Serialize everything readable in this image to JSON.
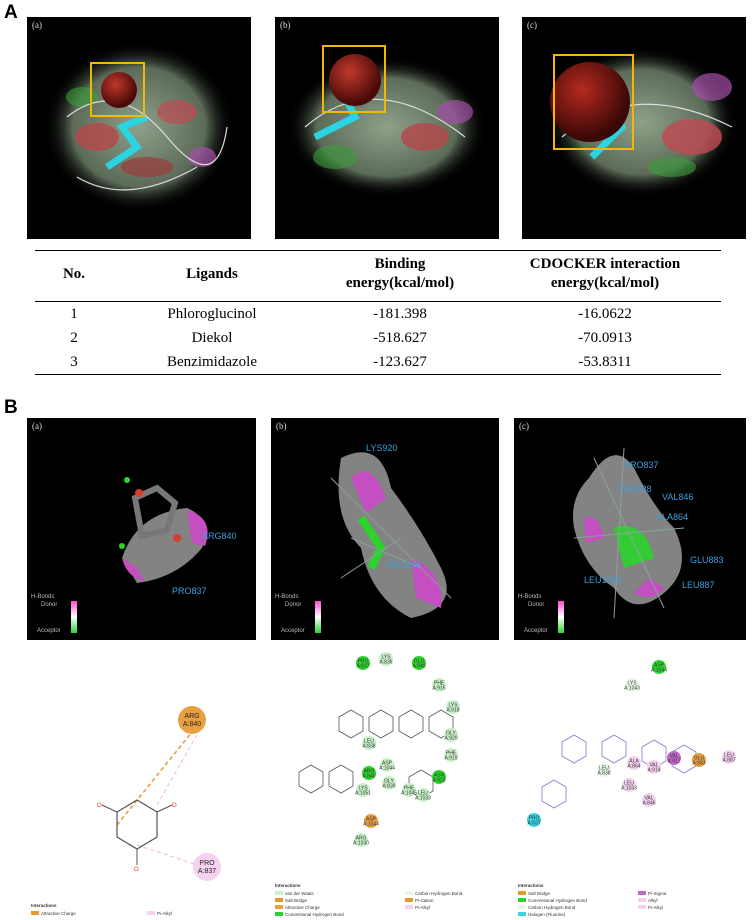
{
  "sectionA": {
    "label": "A",
    "panels": [
      {
        "tag": "(a)"
      },
      {
        "tag": "(b)"
      },
      {
        "tag": "(c)"
      }
    ]
  },
  "table": {
    "headers": {
      "no": "No.",
      "ligands": "Ligands",
      "binding_line1": "Binding",
      "binding_line2": "energy(kcal/mol)",
      "cdocker_line1": "CDOCKER interaction",
      "cdocker_line2": "energy(kcal/mol)"
    },
    "rows": [
      {
        "no": "1",
        "ligand": "Phloroglucinol",
        "binding": "-181.398",
        "cdocker": "-16.0622"
      },
      {
        "no": "2",
        "ligand": "Diekol",
        "binding": "-518.627",
        "cdocker": "-70.0913"
      },
      {
        "no": "3",
        "ligand": "Benzimidazole",
        "binding": "-123.627",
        "cdocker": "-53.8311"
      }
    ]
  },
  "sectionB": {
    "label": "B",
    "hbonds": {
      "title": "H-Bonds",
      "donor": "Donor",
      "acceptor": "Acceptor"
    },
    "panels": [
      {
        "tag": "(a)",
        "residues": [
          "ARG840",
          "PRO837"
        ]
      },
      {
        "tag": "(b)",
        "residues": [
          "LYS920",
          "ARG840"
        ]
      },
      {
        "tag": "(c)",
        "residues": [
          "PRO837",
          "LEU838",
          "VAL846",
          "ALA864",
          "GLU883",
          "LEU887",
          "LEU1002"
        ]
      }
    ],
    "diagram_a": {
      "nodes": [
        {
          "l1": "ARG",
          "l2": "A:840"
        },
        {
          "l1": "PRO",
          "l2": "A:837"
        }
      ],
      "legend_title": "Interactions",
      "legend": [
        "Attractive Charge",
        "Pi-Alkyl"
      ]
    },
    "diagram_b": {
      "nodes": [
        {
          "l1": "PRO",
          "l2": "A:837"
        },
        {
          "l1": "LYS",
          "l2": "A:836"
        },
        {
          "l1": "GLU",
          "l2": "A:840"
        },
        {
          "l1": "PHE",
          "l2": "A:916"
        },
        {
          "l1": "LYS",
          "l2": "A:918"
        },
        {
          "l1": "GLY",
          "l2": "A:920"
        },
        {
          "l1": "PHE",
          "l2": "A:919"
        },
        {
          "l1": "ASN",
          "l2": "A:923"
        },
        {
          "l1": "LEU",
          "l2": "A:1033"
        },
        {
          "l1": "PHE",
          "l2": "A:1045"
        },
        {
          "l1": "ASP",
          "l2": "A:1044"
        },
        {
          "l1": "LEU",
          "l2": "A:838"
        },
        {
          "l1": "ARG",
          "l2": "A:840"
        },
        {
          "l1": "GLY",
          "l2": "A:839"
        },
        {
          "l1": "LYS",
          "l2": "A:1051"
        },
        {
          "l1": "ASP",
          "l2": "A:1044"
        },
        {
          "l1": "ARG",
          "l2": "A:1030"
        }
      ],
      "legend_title": "Interactions",
      "legend": [
        "van der Waals",
        "Salt Bridge",
        "Attractive Charge",
        "Conventional Hydrogen Bond",
        "Carbon Hydrogen Bond",
        "Pi-Cation",
        "Pi-Alkyl"
      ]
    },
    "diagram_c": {
      "nodes": [
        {
          "l1": "LYS",
          "l2": "A:1043"
        },
        {
          "l1": "ASP",
          "l2": "A:1044"
        },
        {
          "l1": "ALA",
          "l2": "A:864"
        },
        {
          "l1": "VAL",
          "l2": "A:914"
        },
        {
          "l1": "VAL",
          "l2": "A:917"
        },
        {
          "l1": "GLU",
          "l2": "A:883"
        },
        {
          "l1": "LEU",
          "l2": "A:887"
        },
        {
          "l1": "LEU",
          "l2": "A:838"
        },
        {
          "l1": "LEU",
          "l2": "A:1033"
        },
        {
          "l1": "VAL",
          "l2": "A:846"
        },
        {
          "l1": "PRO",
          "l2": "A:837"
        }
      ],
      "legend_title": "Interactions",
      "legend": [
        "Salt Bridge",
        "Conventional Hydrogen Bond",
        "Carbon Hydrogen Bond",
        "Halogen (Fluorine)",
        "Pi-Sigma",
        "Alkyl",
        "Pi-Alkyl"
      ]
    }
  }
}
